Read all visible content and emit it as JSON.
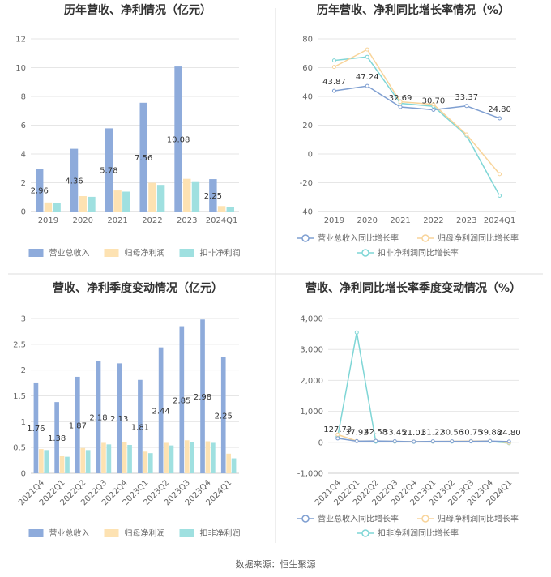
{
  "source": "数据来源：恒生聚源",
  "colors": {
    "revenue": "#8eabdb",
    "net_profit": "#fde2b2",
    "deducted_profit": "#9fe0e0",
    "grid": "#e6e6e6",
    "axis": "#cccccc",
    "divider": "#dddddd"
  },
  "chart_data": [
    {
      "id": "annual_bar",
      "type": "bar",
      "title": "历年营收、净利情况（亿元）",
      "categories": [
        "2019",
        "2020",
        "2021",
        "2022",
        "2023",
        "2024Q1"
      ],
      "ylim": [
        0,
        12
      ],
      "yticks": [
        "0",
        "2",
        "4",
        "6",
        "8",
        "10",
        "12"
      ],
      "grid": true,
      "legend_position": "bottom",
      "series": [
        {
          "name": "营业总收入",
          "values": [
            2.96,
            4.36,
            5.78,
            7.56,
            10.08,
            2.25
          ],
          "labels": [
            "2.96",
            "4.36",
            "5.78",
            "7.56",
            "10.08",
            "2.25"
          ]
        },
        {
          "name": "归母净利润",
          "values": [
            0.63,
            1.07,
            1.46,
            2.0,
            2.27,
            0.38
          ]
        },
        {
          "name": "扣非净利润",
          "values": [
            0.62,
            1.02,
            1.38,
            1.85,
            2.1,
            0.3
          ]
        }
      ]
    },
    {
      "id": "annual_growth",
      "type": "line",
      "title": "历年营收、净利同比增长率情况（%）",
      "categories": [
        "2019",
        "2020",
        "2021",
        "2022",
        "2023",
        "2024Q1"
      ],
      "ylim": [
        -40,
        80
      ],
      "yticks": [
        "-40",
        "-20",
        "0",
        "20",
        "40",
        "60",
        "80"
      ],
      "grid": true,
      "legend_position": "bottom",
      "series": [
        {
          "name": "营业总收入同比增长率",
          "values": [
            43.87,
            47.24,
            32.69,
            30.7,
            33.37,
            24.8
          ],
          "labels": [
            "43.87",
            "47.24",
            "32.69",
            "30.70",
            "33.37",
            "24.80"
          ]
        },
        {
          "name": "归母净利润同比增长率",
          "values": [
            60.5,
            72.6,
            36.3,
            34.5,
            13.5,
            -14
          ]
        },
        {
          "name": "扣非净利润同比增长率",
          "values": [
            65,
            67.5,
            35.2,
            33.1,
            12.8,
            -29
          ]
        }
      ]
    },
    {
      "id": "quarterly_bar",
      "type": "bar",
      "title": "营收、净利季度变动情况（亿元）",
      "categories": [
        "2021Q4",
        "2022Q1",
        "2022Q2",
        "2022Q3",
        "2022Q4",
        "2023Q1",
        "2023Q2",
        "2023Q3",
        "2023Q4",
        "2024Q1"
      ],
      "ylim": [
        0,
        3
      ],
      "yticks": [
        "0",
        "0.5",
        "1",
        "1.5",
        "2",
        "2.5",
        "3"
      ],
      "grid": true,
      "legend_position": "bottom",
      "series": [
        {
          "name": "营业总收入",
          "values": [
            1.76,
            1.38,
            1.87,
            2.18,
            2.13,
            1.81,
            2.44,
            2.85,
            2.98,
            2.25
          ],
          "labels": [
            "1.76",
            "1.38",
            "1.87",
            "2.18",
            "2.13",
            "1.81",
            "2.44",
            "2.85",
            "2.98",
            "2.25"
          ]
        },
        {
          "name": "归母净利润",
          "values": [
            0.47,
            0.33,
            0.49,
            0.59,
            0.6,
            0.42,
            0.59,
            0.64,
            0.62,
            0.38
          ]
        },
        {
          "name": "扣非净利润",
          "values": [
            0.45,
            0.32,
            0.45,
            0.56,
            0.55,
            0.39,
            0.54,
            0.61,
            0.59,
            0.29
          ]
        }
      ]
    },
    {
      "id": "quarterly_growth",
      "type": "line",
      "title": "营收、净利同比增长率季度变动情况（%）",
      "categories": [
        "2021Q4",
        "2022Q1",
        "2022Q2",
        "2022Q3",
        "2022Q4",
        "2023Q1",
        "2023Q2",
        "2023Q3",
        "2023Q4",
        "2024Q1"
      ],
      "ylim": [
        -1000,
        4000
      ],
      "yticks": [
        "-1,000",
        "0",
        "1,000",
        "2,000",
        "3,000",
        "4,000"
      ],
      "grid": true,
      "legend_position": "bottom",
      "series": [
        {
          "name": "营业总收入同比增长率",
          "values": [
            127.73,
            37.92,
            42.58,
            33.45,
            21.01,
            31.22,
            30.56,
            30.75,
            39.88,
            24.8
          ],
          "labels": [
            "127.73",
            "37.92",
            "42.58",
            "33.45",
            "21.01",
            "31.22",
            "30.56",
            "30.75",
            "39.88",
            "24.80"
          ]
        },
        {
          "name": "归母净利润同比增长率",
          "values": [
            250,
            40,
            45,
            30,
            25,
            28,
            35,
            40,
            45,
            -14
          ]
        },
        {
          "name": "扣非净利润同比增长率",
          "values": [
            180,
            3550,
            20,
            20,
            15,
            20,
            25,
            30,
            30,
            -29
          ]
        }
      ]
    }
  ]
}
